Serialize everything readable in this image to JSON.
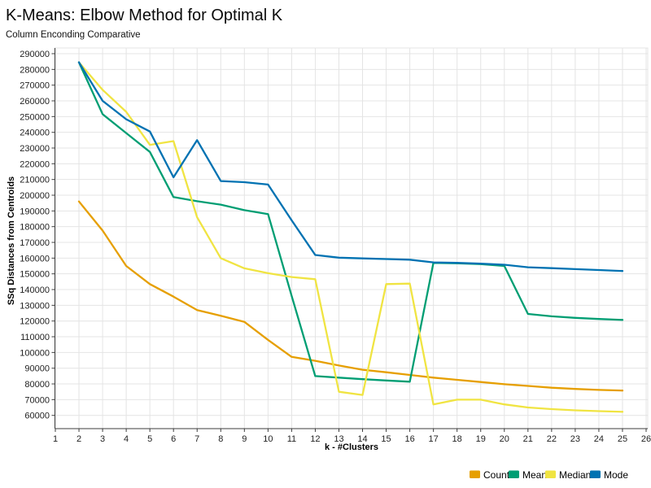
{
  "chart_data": {
    "type": "line",
    "title": "K-Means: Elbow Method for Optimal K",
    "subtitle": "Column Enconding Comparative",
    "xlabel": "k - #Clusters",
    "ylabel": "SSq Distances from Centroids",
    "xlim": [
      1,
      26
    ],
    "ylim": [
      60000,
      290000
    ],
    "x_ticks": [
      1,
      2,
      3,
      4,
      5,
      6,
      7,
      8,
      9,
      10,
      11,
      12,
      13,
      14,
      15,
      16,
      17,
      18,
      19,
      20,
      21,
      22,
      23,
      24,
      25,
      26
    ],
    "y_ticks": [
      60000,
      70000,
      80000,
      90000,
      100000,
      110000,
      120000,
      130000,
      140000,
      150000,
      160000,
      170000,
      180000,
      190000,
      200000,
      210000,
      220000,
      230000,
      240000,
      250000,
      260000,
      270000,
      280000,
      290000
    ],
    "grid": true,
    "legend_position": "bottom-right",
    "x": [
      2,
      3,
      4,
      5,
      6,
      7,
      8,
      9,
      10,
      11,
      12,
      13,
      14,
      15,
      16,
      17,
      18,
      19,
      20,
      21,
      22,
      23,
      24,
      25
    ],
    "series": [
      {
        "name": "Count",
        "color": "#E69F00",
        "values": [
          196000,
          177500,
          155000,
          143500,
          135500,
          127000,
          123300,
          119500,
          108000,
          97200,
          94700,
          91700,
          89000,
          87400,
          85700,
          84000,
          82600,
          81200,
          79800,
          78700,
          77600,
          76800,
          76200,
          75800
        ]
      },
      {
        "name": "Mean",
        "color": "#009E73",
        "values": [
          284500,
          251500,
          239500,
          227500,
          198800,
          196200,
          194000,
          190500,
          188000,
          136000,
          85000,
          84000,
          83000,
          82200,
          81400,
          157000,
          156700,
          156200,
          155000,
          124500,
          123000,
          122000,
          121300,
          120700
        ]
      },
      {
        "name": "Median",
        "color": "#F0E442",
        "values": [
          284500,
          267000,
          253000,
          232000,
          234400,
          186000,
          160000,
          153500,
          150400,
          148000,
          146600,
          75000,
          73000,
          143500,
          143800,
          67000,
          70000,
          70000,
          67000,
          65000,
          64000,
          63200,
          62700,
          62300
        ]
      },
      {
        "name": "Mode",
        "color": "#0072B2",
        "values": [
          284500,
          260000,
          248300,
          240500,
          211400,
          235000,
          209000,
          208300,
          206800,
          184000,
          162000,
          160300,
          159800,
          159400,
          159000,
          157300,
          157000,
          156500,
          155800,
          154200,
          153600,
          153000,
          152400,
          151800
        ]
      }
    ]
  }
}
